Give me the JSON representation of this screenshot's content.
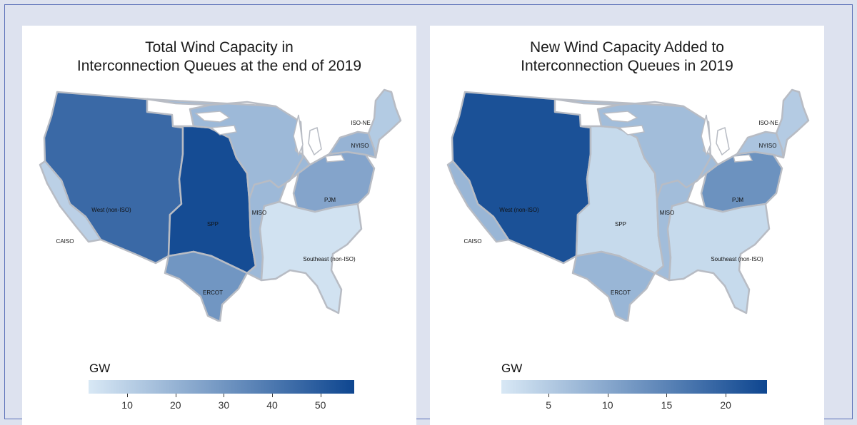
{
  "maps": [
    {
      "title_line1": "Total Wind Capacity in",
      "title_line2": "Interconnection Queues at the end of 2019",
      "legend_title": "GW",
      "scale": {
        "min": 2,
        "max": 57,
        "ticks": [
          10,
          20,
          30,
          40,
          50
        ]
      },
      "regions": [
        {
          "name": "West (non-ISO)",
          "value": 45
        },
        {
          "name": "CAISO",
          "value": 10
        },
        {
          "name": "SPP",
          "value": 55
        },
        {
          "name": "ERCOT",
          "value": 30
        },
        {
          "name": "MISO",
          "value": 18
        },
        {
          "name": "PJM",
          "value": 25
        },
        {
          "name": "NYISO",
          "value": 20
        },
        {
          "name": "ISO-NE",
          "value": 12
        },
        {
          "name": "Southeast (non-ISO)",
          "value": 4
        }
      ]
    },
    {
      "title_line1": "New Wind Capacity Added to",
      "title_line2": "Interconnection Queues in 2019",
      "legend_title": "GW",
      "scale": {
        "min": 1,
        "max": 23.5,
        "ticks": [
          5,
          10,
          15,
          20
        ]
      },
      "regions": [
        {
          "name": "West (non-ISO)",
          "value": 22
        },
        {
          "name": "CAISO",
          "value": 8
        },
        {
          "name": "SPP",
          "value": 3
        },
        {
          "name": "ERCOT",
          "value": 8
        },
        {
          "name": "MISO",
          "value": 7
        },
        {
          "name": "PJM",
          "value": 13
        },
        {
          "name": "NYISO",
          "value": 6
        },
        {
          "name": "ISO-NE",
          "value": 5
        },
        {
          "name": "Southeast (non-ISO)",
          "value": 3
        }
      ]
    }
  ],
  "colors": {
    "low": "#d8e8f5",
    "high": "#0e4690",
    "border": "#b8bcc4",
    "water": "#ffffff"
  }
}
